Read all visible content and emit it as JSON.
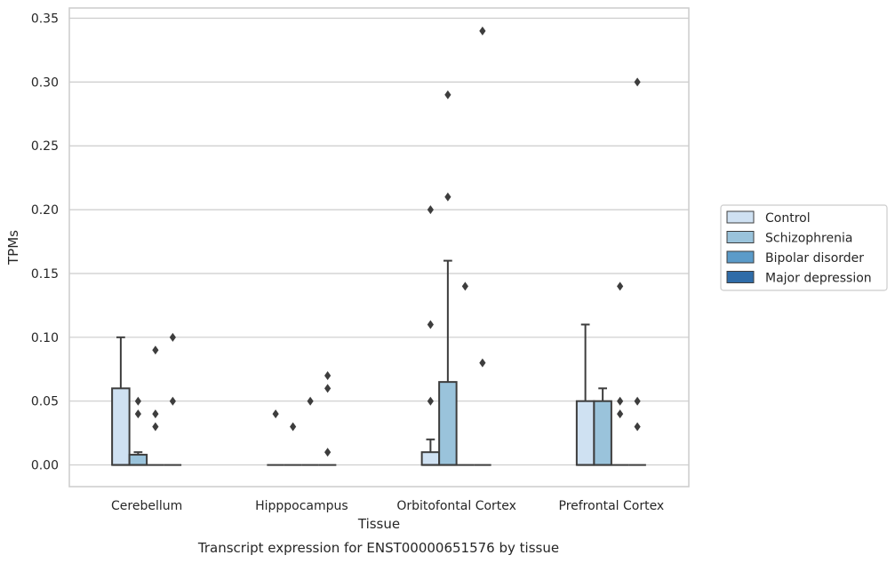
{
  "chart_data": {
    "type": "box",
    "xlabel": "Tissue",
    "ylabel": "TPMs",
    "caption": "Transcript expression for ENST00000651576 by tissue",
    "ylim": [
      -0.017,
      0.358
    ],
    "yticks": [
      "0.00",
      "0.05",
      "0.10",
      "0.15",
      "0.20",
      "0.25",
      "0.30",
      "0.35"
    ],
    "grid": "horizontal",
    "legend_position": "right",
    "categories": [
      "Cerebellum",
      "Hipppocampus",
      "Orbitofontal Cortex",
      "Prefrontal Cortex"
    ],
    "series": [
      {
        "name": "Control",
        "color": "#cfe1f2",
        "boxes": [
          {
            "q1": 0,
            "median": 0,
            "q3": 0.06,
            "whisker_low": 0,
            "whisker_high": 0.1,
            "outliers": []
          },
          {
            "q1": 0,
            "median": 0,
            "q3": 0,
            "whisker_low": 0,
            "whisker_high": 0,
            "outliers": [
              0.04
            ]
          },
          {
            "q1": 0,
            "median": 0,
            "q3": 0.01,
            "whisker_low": 0,
            "whisker_high": 0.02,
            "outliers": [
              0.05,
              0.11,
              0.2
            ]
          },
          {
            "q1": 0,
            "median": 0,
            "q3": 0.05,
            "whisker_low": 0,
            "whisker_high": 0.11,
            "outliers": []
          }
        ]
      },
      {
        "name": "Schizophrenia",
        "color": "#9ac3db",
        "boxes": [
          {
            "q1": 0,
            "median": 0,
            "q3": 0.008,
            "whisker_low": 0,
            "whisker_high": 0.01,
            "outliers": [
              0.04,
              0.05
            ]
          },
          {
            "q1": 0,
            "median": 0,
            "q3": 0,
            "whisker_low": 0,
            "whisker_high": 0,
            "outliers": [
              0.03
            ]
          },
          {
            "q1": 0,
            "median": 0,
            "q3": 0.065,
            "whisker_low": 0,
            "whisker_high": 0.16,
            "outliers": [
              0.21,
              0.29
            ]
          },
          {
            "q1": 0,
            "median": 0,
            "q3": 0.05,
            "whisker_low": 0,
            "whisker_high": 0.06,
            "outliers": []
          }
        ]
      },
      {
        "name": "Bipolar disorder",
        "color": "#5b9bc9",
        "boxes": [
          {
            "q1": 0,
            "median": 0,
            "q3": 0,
            "whisker_low": 0,
            "whisker_high": 0,
            "outliers": [
              0.03,
              0.04,
              0.09
            ]
          },
          {
            "q1": 0,
            "median": 0,
            "q3": 0,
            "whisker_low": 0,
            "whisker_high": 0,
            "outliers": [
              0.05
            ]
          },
          {
            "q1": 0,
            "median": 0,
            "q3": 0,
            "whisker_low": 0,
            "whisker_high": 0,
            "outliers": [
              0.14
            ]
          },
          {
            "q1": 0,
            "median": 0,
            "q3": 0,
            "whisker_low": 0,
            "whisker_high": 0,
            "outliers": [
              0.04,
              0.05,
              0.14
            ]
          }
        ]
      },
      {
        "name": "Major depression",
        "color": "#2f6ca8",
        "boxes": [
          {
            "q1": 0,
            "median": 0,
            "q3": 0,
            "whisker_low": 0,
            "whisker_high": 0,
            "outliers": [
              0.05,
              0.1
            ]
          },
          {
            "q1": 0,
            "median": 0,
            "q3": 0,
            "whisker_low": 0,
            "whisker_high": 0,
            "outliers": [
              0.01,
              0.06,
              0.07
            ]
          },
          {
            "q1": 0,
            "median": 0,
            "q3": 0,
            "whisker_low": 0,
            "whisker_high": 0,
            "outliers": [
              0.08,
              0.34
            ]
          },
          {
            "q1": 0,
            "median": 0,
            "q3": 0,
            "whisker_low": 0,
            "whisker_high": 0,
            "outliers": [
              0.03,
              0.05,
              0.3
            ]
          }
        ]
      }
    ]
  }
}
